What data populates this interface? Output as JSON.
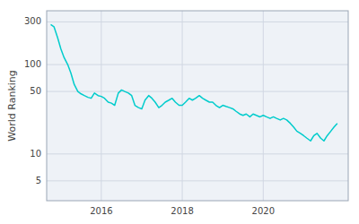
{
  "chart_data": {
    "type": "line",
    "ylabel": "World Ranking",
    "color": "#00cccc",
    "log": "y",
    "grid": true,
    "xlim": [
      2014.65,
      2022.1
    ],
    "xticks": [
      2016,
      2018,
      2020
    ],
    "ylim": [
      3,
      400
    ],
    "yticks": [
      5,
      10,
      50,
      100,
      300
    ],
    "x": [
      2014.75,
      2014.83,
      2014.92,
      2015.0,
      2015.08,
      2015.17,
      2015.25,
      2015.33,
      2015.42,
      2015.5,
      2015.58,
      2015.67,
      2015.75,
      2015.83,
      2015.92,
      2016.0,
      2016.08,
      2016.17,
      2016.25,
      2016.33,
      2016.42,
      2016.5,
      2016.58,
      2016.67,
      2016.75,
      2016.83,
      2016.92,
      2017.0,
      2017.08,
      2017.17,
      2017.25,
      2017.33,
      2017.42,
      2017.5,
      2017.58,
      2017.67,
      2017.75,
      2017.83,
      2017.92,
      2018.0,
      2018.08,
      2018.17,
      2018.25,
      2018.33,
      2018.42,
      2018.5,
      2018.58,
      2018.67,
      2018.75,
      2018.83,
      2018.92,
      2019.0,
      2019.08,
      2019.17,
      2019.25,
      2019.33,
      2019.42,
      2019.5,
      2019.58,
      2019.67,
      2019.75,
      2019.83,
      2019.92,
      2020.0,
      2020.08,
      2020.17,
      2020.25,
      2020.33,
      2020.42,
      2020.5,
      2020.58,
      2020.67,
      2020.75,
      2020.83,
      2020.92,
      2021.0,
      2021.08,
      2021.17,
      2021.25,
      2021.33,
      2021.42,
      2021.5,
      2021.58,
      2021.67,
      2021.75,
      2021.83
    ],
    "values": [
      280,
      265,
      200,
      150,
      120,
      100,
      80,
      60,
      50,
      47,
      45,
      43,
      42,
      48,
      45,
      44,
      42,
      38,
      37,
      35,
      48,
      52,
      50,
      48,
      45,
      35,
      33,
      32,
      40,
      45,
      42,
      38,
      33,
      35,
      38,
      40,
      42,
      38,
      35,
      35,
      38,
      42,
      40,
      42,
      45,
      42,
      40,
      38,
      38,
      35,
      33,
      35,
      34,
      33,
      32,
      30,
      28,
      27,
      28,
      26,
      28,
      27,
      26,
      27,
      26,
      25,
      26,
      25,
      24,
      25,
      24,
      22,
      20,
      18,
      17,
      16,
      15,
      14,
      16,
      17,
      15,
      14,
      16,
      18,
      20,
      22
    ]
  }
}
